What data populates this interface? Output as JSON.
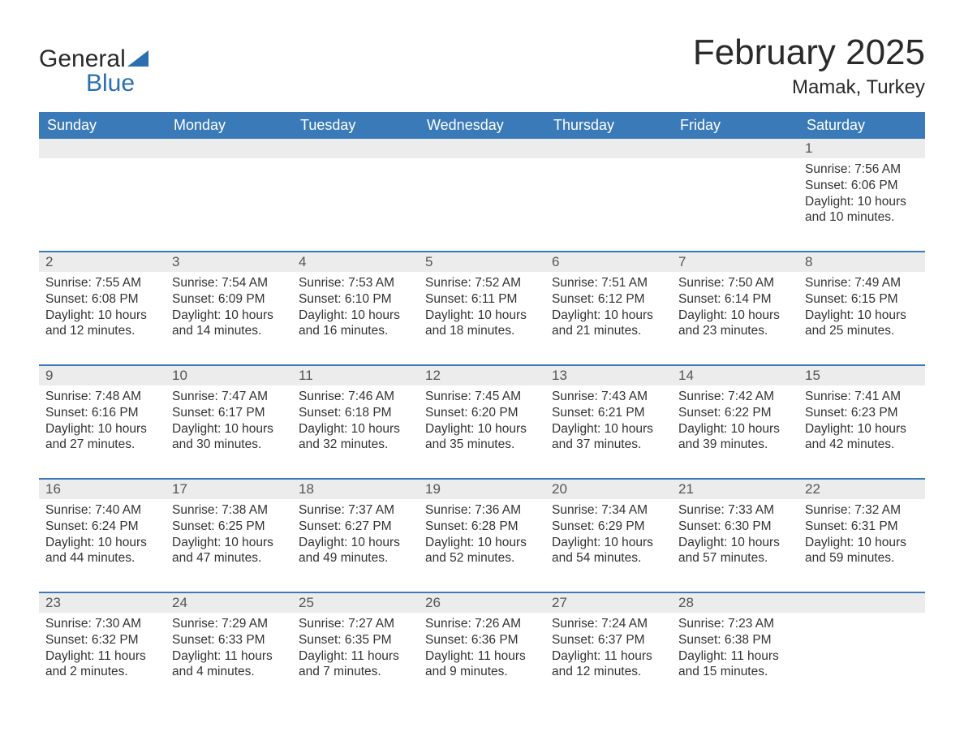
{
  "brand": {
    "word1": "General",
    "word2": "Blue"
  },
  "title": "February 2025",
  "location": "Mamak, Turkey",
  "colors": {
    "header_bg": "#3a7ab8",
    "header_text": "#ffffff",
    "daynum_bg": "#ececec",
    "border": "#3a7ab8",
    "text": "#333333",
    "brand_dark": "#2a2a2a",
    "brand_blue": "#2b6fb0",
    "page_bg": "#ffffff"
  },
  "typography": {
    "title_fontsize": 44,
    "location_fontsize": 24,
    "weekday_fontsize": 18,
    "body_fontsize": 15.5,
    "font_family": "Segoe UI"
  },
  "weekdays": [
    "Sunday",
    "Monday",
    "Tuesday",
    "Wednesday",
    "Thursday",
    "Friday",
    "Saturday"
  ],
  "labels": {
    "sunrise": "Sunrise:",
    "sunset": "Sunset:",
    "daylight": "Daylight:"
  },
  "weeks": [
    [
      {
        "empty": true
      },
      {
        "empty": true
      },
      {
        "empty": true
      },
      {
        "empty": true
      },
      {
        "empty": true
      },
      {
        "empty": true
      },
      {
        "num": "1",
        "sunrise": "7:56 AM",
        "sunset": "6:06 PM",
        "daylight_l1": "10 hours",
        "daylight_l2": "and 10 minutes."
      }
    ],
    [
      {
        "num": "2",
        "sunrise": "7:55 AM",
        "sunset": "6:08 PM",
        "daylight_l1": "10 hours",
        "daylight_l2": "and 12 minutes."
      },
      {
        "num": "3",
        "sunrise": "7:54 AM",
        "sunset": "6:09 PM",
        "daylight_l1": "10 hours",
        "daylight_l2": "and 14 minutes."
      },
      {
        "num": "4",
        "sunrise": "7:53 AM",
        "sunset": "6:10 PM",
        "daylight_l1": "10 hours",
        "daylight_l2": "and 16 minutes."
      },
      {
        "num": "5",
        "sunrise": "7:52 AM",
        "sunset": "6:11 PM",
        "daylight_l1": "10 hours",
        "daylight_l2": "and 18 minutes."
      },
      {
        "num": "6",
        "sunrise": "7:51 AM",
        "sunset": "6:12 PM",
        "daylight_l1": "10 hours",
        "daylight_l2": "and 21 minutes."
      },
      {
        "num": "7",
        "sunrise": "7:50 AM",
        "sunset": "6:14 PM",
        "daylight_l1": "10 hours",
        "daylight_l2": "and 23 minutes."
      },
      {
        "num": "8",
        "sunrise": "7:49 AM",
        "sunset": "6:15 PM",
        "daylight_l1": "10 hours",
        "daylight_l2": "and 25 minutes."
      }
    ],
    [
      {
        "num": "9",
        "sunrise": "7:48 AM",
        "sunset": "6:16 PM",
        "daylight_l1": "10 hours",
        "daylight_l2": "and 27 minutes."
      },
      {
        "num": "10",
        "sunrise": "7:47 AM",
        "sunset": "6:17 PM",
        "daylight_l1": "10 hours",
        "daylight_l2": "and 30 minutes."
      },
      {
        "num": "11",
        "sunrise": "7:46 AM",
        "sunset": "6:18 PM",
        "daylight_l1": "10 hours",
        "daylight_l2": "and 32 minutes."
      },
      {
        "num": "12",
        "sunrise": "7:45 AM",
        "sunset": "6:20 PM",
        "daylight_l1": "10 hours",
        "daylight_l2": "and 35 minutes."
      },
      {
        "num": "13",
        "sunrise": "7:43 AM",
        "sunset": "6:21 PM",
        "daylight_l1": "10 hours",
        "daylight_l2": "and 37 minutes."
      },
      {
        "num": "14",
        "sunrise": "7:42 AM",
        "sunset": "6:22 PM",
        "daylight_l1": "10 hours",
        "daylight_l2": "and 39 minutes."
      },
      {
        "num": "15",
        "sunrise": "7:41 AM",
        "sunset": "6:23 PM",
        "daylight_l1": "10 hours",
        "daylight_l2": "and 42 minutes."
      }
    ],
    [
      {
        "num": "16",
        "sunrise": "7:40 AM",
        "sunset": "6:24 PM",
        "daylight_l1": "10 hours",
        "daylight_l2": "and 44 minutes."
      },
      {
        "num": "17",
        "sunrise": "7:38 AM",
        "sunset": "6:25 PM",
        "daylight_l1": "10 hours",
        "daylight_l2": "and 47 minutes."
      },
      {
        "num": "18",
        "sunrise": "7:37 AM",
        "sunset": "6:27 PM",
        "daylight_l1": "10 hours",
        "daylight_l2": "and 49 minutes."
      },
      {
        "num": "19",
        "sunrise": "7:36 AM",
        "sunset": "6:28 PM",
        "daylight_l1": "10 hours",
        "daylight_l2": "and 52 minutes."
      },
      {
        "num": "20",
        "sunrise": "7:34 AM",
        "sunset": "6:29 PM",
        "daylight_l1": "10 hours",
        "daylight_l2": "and 54 minutes."
      },
      {
        "num": "21",
        "sunrise": "7:33 AM",
        "sunset": "6:30 PM",
        "daylight_l1": "10 hours",
        "daylight_l2": "and 57 minutes."
      },
      {
        "num": "22",
        "sunrise": "7:32 AM",
        "sunset": "6:31 PM",
        "daylight_l1": "10 hours",
        "daylight_l2": "and 59 minutes."
      }
    ],
    [
      {
        "num": "23",
        "sunrise": "7:30 AM",
        "sunset": "6:32 PM",
        "daylight_l1": "11 hours",
        "daylight_l2": "and 2 minutes."
      },
      {
        "num": "24",
        "sunrise": "7:29 AM",
        "sunset": "6:33 PM",
        "daylight_l1": "11 hours",
        "daylight_l2": "and 4 minutes."
      },
      {
        "num": "25",
        "sunrise": "7:27 AM",
        "sunset": "6:35 PM",
        "daylight_l1": "11 hours",
        "daylight_l2": "and 7 minutes."
      },
      {
        "num": "26",
        "sunrise": "7:26 AM",
        "sunset": "6:36 PM",
        "daylight_l1": "11 hours",
        "daylight_l2": "and 9 minutes."
      },
      {
        "num": "27",
        "sunrise": "7:24 AM",
        "sunset": "6:37 PM",
        "daylight_l1": "11 hours",
        "daylight_l2": "and 12 minutes."
      },
      {
        "num": "28",
        "sunrise": "7:23 AM",
        "sunset": "6:38 PM",
        "daylight_l1": "11 hours",
        "daylight_l2": "and 15 minutes."
      },
      {
        "empty": true
      }
    ]
  ]
}
